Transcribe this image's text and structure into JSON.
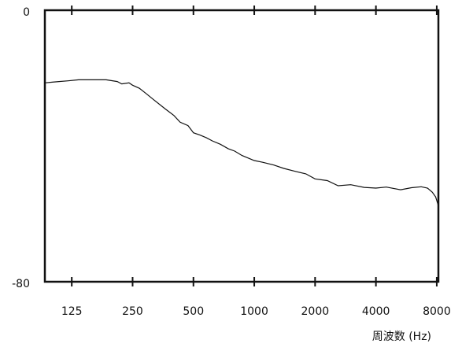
{
  "chart_data": {
    "type": "line",
    "x_label": "周波数 (Hz)",
    "x": [
      92,
      100,
      108,
      120,
      135,
      160,
      185,
      210,
      221,
      240,
      250,
      270,
      291,
      320,
      363,
      400,
      430,
      470,
      500,
      540,
      580,
      620,
      680,
      743,
      800,
      870,
      1000,
      1100,
      1250,
      1400,
      1600,
      1800,
      2000,
      2300,
      2600,
      3000,
      3500,
      4000,
      4500,
      5300,
      6000,
      6700,
      7200,
      7600,
      7900,
      8150
    ],
    "values": [
      -21.4,
      -21.2,
      -21,
      -20.8,
      -20.5,
      -20.5,
      -20.5,
      -21,
      -21.7,
      -21.4,
      -22.1,
      -23,
      -24.5,
      -26.5,
      -29.1,
      -31,
      -33,
      -34,
      -36.1,
      -36.8,
      -37.6,
      -38.5,
      -39.5,
      -40.8,
      -41.5,
      -42.8,
      -44.3,
      -44.8,
      -45.6,
      -46.6,
      -47.5,
      -48.2,
      -49.7,
      -50.2,
      -51.7,
      -51.4,
      -52.2,
      -52.4,
      -52.1,
      -52.9,
      -52.3,
      -52,
      -52.4,
      -53.6,
      -55,
      -57.6
    ],
    "color": "#111111",
    "xscale": "log",
    "xlim": [
      92,
      8150
    ],
    "xticks": [
      125,
      250,
      500,
      1000,
      2000,
      4000,
      8000
    ],
    "ylim": [
      -80,
      0
    ],
    "yticks": [
      -80,
      0
    ]
  }
}
